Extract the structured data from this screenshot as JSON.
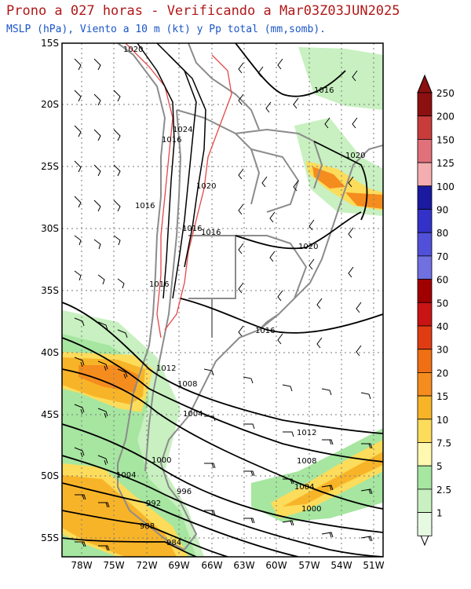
{
  "header": {
    "title": "Prono a 027 horas - Verificando a Mar03Z03JUN2025",
    "subtitle": "MSLP (hPa), Viento a 10 m (kt) y Pp total (mm,somb)."
  },
  "map": {
    "lat_labels": [
      "15S",
      "20S",
      "25S",
      "30S",
      "35S",
      "40S",
      "45S",
      "50S",
      "55S"
    ],
    "lon_labels": [
      "78W",
      "75W",
      "72W",
      "69W",
      "66W",
      "63W",
      "60W",
      "57W",
      "54W",
      "51W"
    ],
    "isobars": [
      {
        "label": "1020"
      },
      {
        "label": "1024"
      },
      {
        "label": "1016"
      },
      {
        "label": "1016"
      },
      {
        "label": "1020"
      },
      {
        "label": "1016"
      },
      {
        "label": "1016"
      },
      {
        "label": "1016"
      },
      {
        "label": "1020"
      },
      {
        "label": "1016"
      },
      {
        "label": "1020"
      },
      {
        "label": "1016"
      },
      {
        "label": "1012"
      },
      {
        "label": "1008"
      },
      {
        "label": "1004"
      },
      {
        "label": "1012"
      },
      {
        "label": "1008"
      },
      {
        "label": "1004"
      },
      {
        "label": "1000"
      },
      {
        "label": "1004"
      },
      {
        "label": "1000"
      },
      {
        "label": "996"
      },
      {
        "label": "992"
      },
      {
        "label": "988"
      },
      {
        "label": "984"
      }
    ]
  },
  "colorbar": {
    "ticks": [
      "250",
      "200",
      "150",
      "125",
      "100",
      "90",
      "80",
      "70",
      "60",
      "50",
      "40",
      "30",
      "20",
      "15",
      "10",
      "7.5",
      "5",
      "2.5",
      "1"
    ],
    "colors": [
      "#8c1010",
      "#c83c3c",
      "#e0707a",
      "#f4aeb0",
      "#1a1aa0",
      "#3232c8",
      "#5050d8",
      "#7070e0",
      "#a00000",
      "#c81414",
      "#e03c14",
      "#f06e14",
      "#f58c1e",
      "#f8b428",
      "#fcdc5a",
      "#fef8b0",
      "#a6e6a0",
      "#c8f0c0",
      "#e6fae2"
    ]
  }
}
